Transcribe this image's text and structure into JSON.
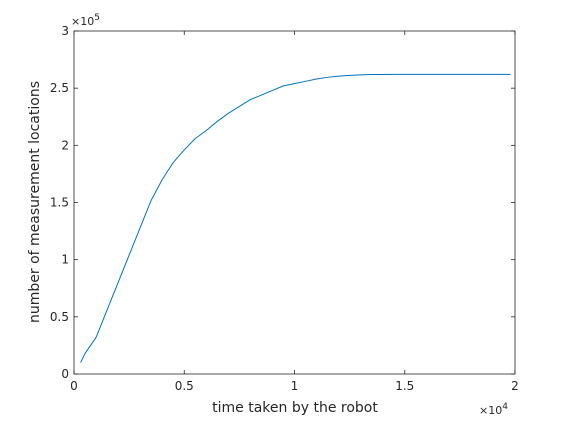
{
  "chart_data": {
    "type": "line",
    "title": "",
    "xlabel": "time taken by the robot",
    "ylabel": "number of measurement locations",
    "x_exponent_label": "10",
    "x_exponent": "4",
    "y_exponent_label": "10",
    "y_exponent": "5",
    "x_multiplier_prefix": "×",
    "y_multiplier_prefix": "×",
    "xlim": [
      0,
      20000
    ],
    "ylim": [
      0,
      300000
    ],
    "x_ticks": [
      0,
      5000,
      10000,
      15000,
      20000
    ],
    "x_tick_labels": [
      "0",
      "0.5",
      "1",
      "1.5",
      "2"
    ],
    "y_ticks": [
      0,
      50000,
      100000,
      150000,
      200000,
      250000,
      300000
    ],
    "y_tick_labels": [
      "0",
      "0.5",
      "1",
      "1.5",
      "2",
      "2.5",
      "3"
    ],
    "grid": false,
    "box": true,
    "series": [
      {
        "line_color": "#0072bd",
        "x": [
          300,
          500,
          1000,
          1500,
          2000,
          2500,
          3000,
          3500,
          4000,
          4500,
          5000,
          5500,
          6000,
          6500,
          7000,
          7500,
          8000,
          8500,
          9000,
          9500,
          10000,
          10500,
          11000,
          11500,
          12000,
          12500,
          13000,
          13500,
          14000,
          14500,
          15000,
          15500,
          16000,
          17000,
          18000,
          19000,
          19800
        ],
        "values": [
          10000,
          18000,
          32000,
          56000,
          80000,
          104000,
          128000,
          152000,
          170000,
          185000,
          196000,
          206000,
          213000,
          221000,
          228000,
          234000,
          240000,
          244000,
          248000,
          252000,
          254000,
          256000,
          258000,
          259500,
          260500,
          261200,
          261600,
          261900,
          262000,
          262100,
          262100,
          262100,
          262100,
          262100,
          262100,
          262100,
          262100
        ]
      }
    ]
  }
}
